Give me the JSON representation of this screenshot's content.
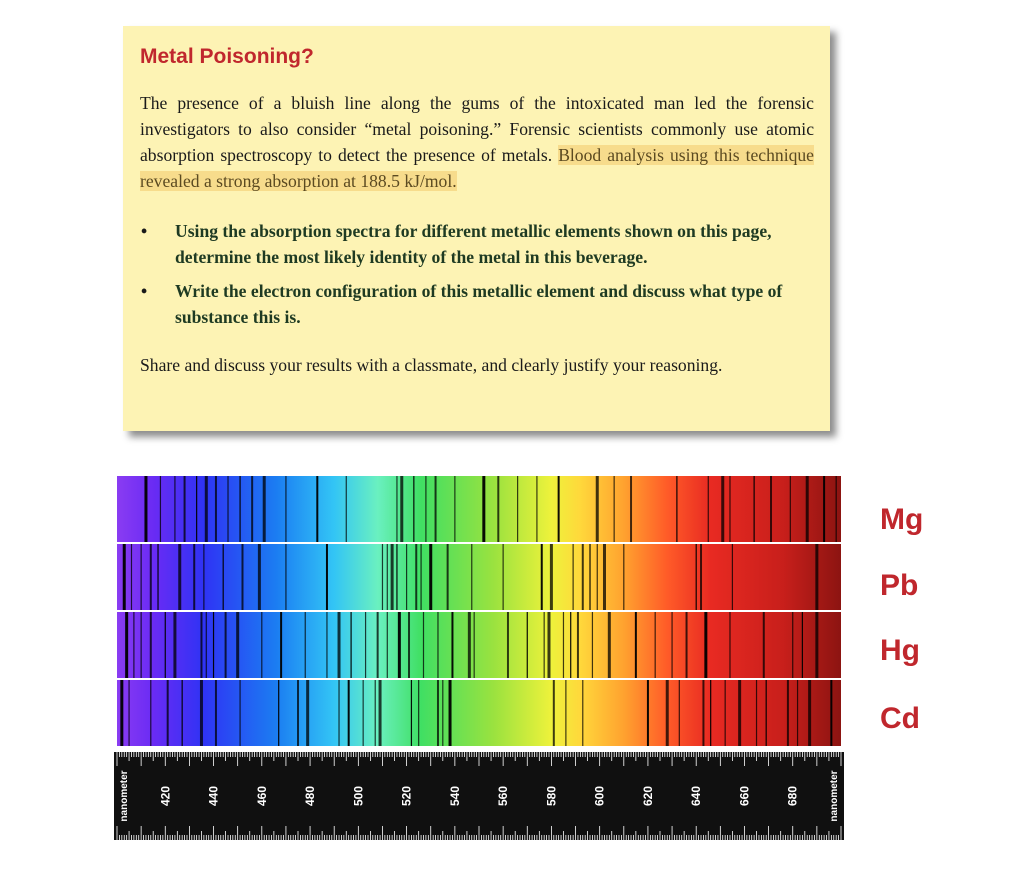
{
  "callout": {
    "title": "Metal Poisoning?",
    "intro_plain": "The presence of a bluish line along the gums of the intoxicated man led the forensic investigators to also consider “metal poisoning.” Forensic scientists commonly use atomic absorption spectroscopy to detect the presence of metals. ",
    "intro_highlight": "Blood analysis using this technique revealed a strong absorption at 188.5 kJ/mol.",
    "bullet_symbol": "•",
    "questions": [
      "Using the absorption spectra for different metallic elements shown on this page, determine the most likely identity of the metal in this beverage.",
      "Write the electron configuration of this metallic element and discuss what type of substance this is."
    ],
    "closing": "Share and discuss your results with a classmate, and clearly justify your reasoning."
  },
  "spectra": {
    "elements": [
      "Mg",
      "Pb",
      "Hg",
      "Cd"
    ],
    "unit_label": "nanometer",
    "range_nm": [
      400,
      700
    ],
    "tick_labels": [
      "420",
      "440",
      "460",
      "480",
      "500",
      "520",
      "540",
      "560",
      "580",
      "600",
      "620",
      "640",
      "660",
      "680"
    ],
    "label_color": "#c0272d",
    "lines_nm": {
      "Mg": [
        412,
        418,
        424,
        428,
        433,
        437,
        441,
        446,
        451,
        456,
        461,
        470,
        483,
        495,
        516,
        518,
        523,
        528,
        532,
        540,
        552,
        558,
        566,
        574,
        583,
        599,
        606,
        613,
        632,
        645,
        651,
        654,
        664,
        671,
        679,
        686,
        693,
        698
      ],
      "Pb": [
        403,
        406,
        410,
        414,
        417,
        426,
        432,
        436,
        444,
        452,
        459,
        470,
        487,
        510,
        512,
        514,
        516,
        520,
        524,
        526,
        530,
        537,
        547,
        560,
        576,
        580,
        589,
        593,
        596,
        599,
        602,
        610,
        640,
        642,
        655,
        690
      ],
      "Hg": [
        404,
        407,
        410,
        414,
        420,
        424,
        435,
        437,
        440,
        445,
        450,
        460,
        468,
        478,
        487,
        492,
        497,
        503,
        508,
        512,
        517,
        521,
        527,
        533,
        539,
        546,
        548,
        562,
        570,
        577,
        579,
        585,
        588,
        591,
        597,
        604,
        615,
        623,
        630,
        636,
        644,
        654,
        668,
        680,
        684,
        690
      ],
      "Cd": [
        402,
        405,
        414,
        421,
        427,
        435,
        441,
        451,
        467,
        475,
        479,
        492,
        496,
        502,
        507,
        509,
        522,
        525,
        533,
        535,
        538,
        581,
        586,
        593,
        620,
        628,
        633,
        643,
        646,
        652,
        658,
        665,
        669,
        678,
        682,
        687,
        696
      ]
    }
  }
}
